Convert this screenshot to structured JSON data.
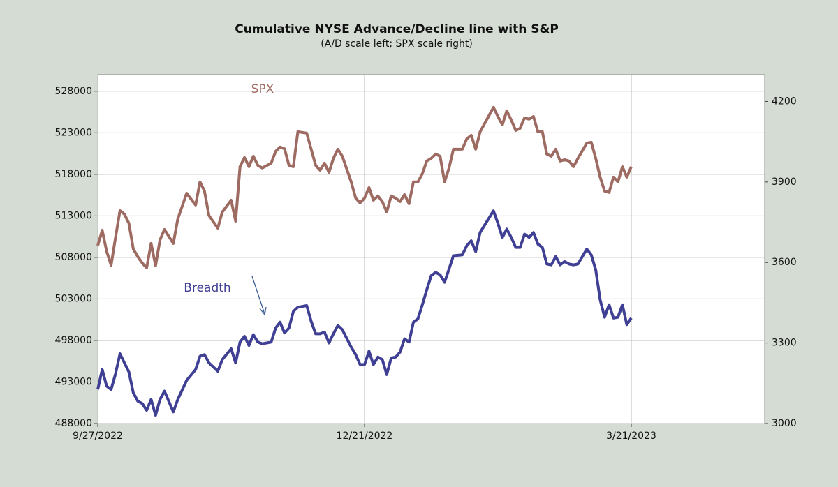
{
  "chart_data": {
    "type": "line",
    "title": "Cumulative NYSE Advance/Decline line with S&P",
    "subtitle": "(A/D scale left; SPX scale right)",
    "x": [
      0,
      1,
      2,
      3,
      4,
      5,
      6,
      7,
      8,
      9,
      10,
      11,
      12,
      13,
      14,
      15,
      17,
      18,
      20,
      22,
      23,
      24,
      25,
      27,
      28,
      30,
      31,
      32,
      33,
      34,
      35,
      36,
      37,
      39,
      40,
      41,
      42,
      43,
      44,
      45,
      47,
      48,
      49,
      50,
      51,
      52,
      53,
      54,
      55,
      57,
      58,
      59,
      60,
      61,
      62,
      63,
      64,
      65,
      66,
      67,
      68,
      69,
      70,
      71,
      72,
      73,
      74,
      75,
      76,
      77,
      78,
      79,
      80,
      82,
      83,
      84,
      85,
      86,
      89,
      90,
      91,
      92,
      93,
      94,
      95,
      96,
      97,
      98,
      99,
      100,
      101,
      102,
      103,
      104,
      105,
      106,
      107,
      108,
      110,
      111,
      112,
      113,
      114,
      115,
      116,
      117,
      118,
      119,
      120
    ],
    "series": [
      {
        "name": "SPX",
        "color": "#9e6b62",
        "axis": "y2",
        "values": [
          3663,
          3720,
          3642,
          3590,
          3694,
          3793,
          3780,
          3746,
          3650,
          3622,
          3598,
          3580,
          3671,
          3588,
          3684,
          3723,
          3671,
          3762,
          3858,
          3814,
          3900,
          3866,
          3775,
          3728,
          3788,
          3832,
          3754,
          3957,
          3991,
          3957,
          3996,
          3962,
          3952,
          3970,
          4014,
          4030,
          4024,
          3962,
          3957,
          4087,
          4082,
          4022,
          3962,
          3944,
          3970,
          3936,
          3988,
          4022,
          3996,
          3900,
          3840,
          3822,
          3840,
          3879,
          3832,
          3848,
          3827,
          3788,
          3848,
          3840,
          3827,
          3853,
          3819,
          3900,
          3900,
          3931,
          3978,
          3988,
          4004,
          3996,
          3900,
          3952,
          4022,
          4022,
          4061,
          4074,
          4022,
          4087,
          4178,
          4144,
          4113,
          4165,
          4131,
          4092,
          4100,
          4139,
          4134,
          4144,
          4087,
          4087,
          4004,
          3996,
          4022,
          3978,
          3983,
          3978,
          3957,
          3988,
          4045,
          4048,
          3988,
          3918,
          3866,
          3861,
          3918,
          3900,
          3957,
          3918,
          3957
        ]
      },
      {
        "name": "Breadth",
        "color": "#3f3f94",
        "values": [
          492100,
          494500,
          492500,
          492100,
          494000,
          496400,
          495300,
          494200,
          491700,
          490700,
          490400,
          489600,
          490900,
          489000,
          490900,
          491900,
          489400,
          490900,
          493200,
          494500,
          496100,
          496300,
          495300,
          494300,
          495700,
          497000,
          495300,
          497800,
          498500,
          497400,
          498700,
          497800,
          497600,
          497800,
          499500,
          500200,
          498900,
          499500,
          501500,
          502000,
          502200,
          500300,
          498800,
          498800,
          499000,
          497700,
          498800,
          499800,
          499300,
          497200,
          496300,
          495100,
          495100,
          496700,
          495100,
          496000,
          495700,
          493900,
          495900,
          496000,
          496600,
          498200,
          497800,
          500200,
          500600,
          502300,
          504100,
          505800,
          506200,
          505900,
          505000,
          506600,
          508200,
          508300,
          509400,
          510000,
          508700,
          511000,
          513600,
          512100,
          510400,
          511400,
          510400,
          509200,
          509200,
          510800,
          510400,
          511000,
          509600,
          509200,
          507200,
          507100,
          508100,
          507100,
          507500,
          507200,
          507100,
          507200,
          509000,
          508300,
          506500,
          502900,
          500800,
          502300,
          500700,
          500800,
          502300,
          499900,
          500700
        ]
      }
    ],
    "xlim": [
      0,
      150
    ],
    "xticks": [
      {
        "value": 0,
        "label": "9/27/2022"
      },
      {
        "value": 60,
        "label": "12/21/2022"
      },
      {
        "value": 120,
        "label": "3/21/2023"
      }
    ],
    "ylim": [
      488000,
      530000
    ],
    "yticks": [
      488000,
      493000,
      498000,
      503000,
      508000,
      513000,
      518000,
      523000,
      528000
    ],
    "y2lim": [
      3000,
      4300
    ],
    "y2ticks": [
      3000,
      3300,
      3600,
      3900,
      4200
    ],
    "grid": true
  }
}
